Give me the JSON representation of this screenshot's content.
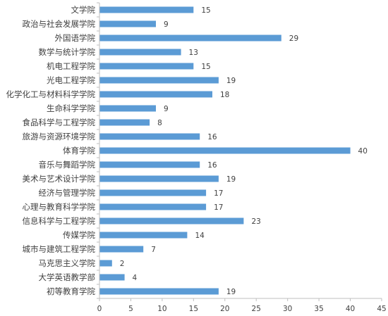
{
  "chart_data": {
    "type": "bar",
    "orientation": "horizontal",
    "categories": [
      "文学院",
      "政治与社会发展学院",
      "外国语学院",
      "数学与统计学院",
      "机电工程学院",
      "光电工程学院",
      "化学化工与材料科学学院",
      "生命科学学院",
      "食品科学与工程学院",
      "旅游与资源环境学院",
      "体育学院",
      "音乐与舞蹈学院",
      "美术与艺术设计学院",
      "经济与管理学院",
      "心理与教育科学学院",
      "信息科学与工程学院",
      "传媒学院",
      "城市与建筑工程学院",
      "马克思主义学院",
      "大学英语教学部",
      "初等教育学院"
    ],
    "values": [
      15,
      9,
      29,
      13,
      15,
      19,
      18,
      9,
      8,
      16,
      40,
      16,
      19,
      17,
      17,
      23,
      14,
      7,
      2,
      4,
      19
    ],
    "xlim": [
      0,
      45
    ],
    "xticks": [
      "0",
      "5",
      "10",
      "15",
      "20",
      "25",
      "30",
      "35",
      "40",
      "45"
    ],
    "grid": false,
    "data_labels": true,
    "bar_color": "#5b9bd5",
    "axis_color": "#bfbfbf",
    "text_color": "#404040"
  }
}
